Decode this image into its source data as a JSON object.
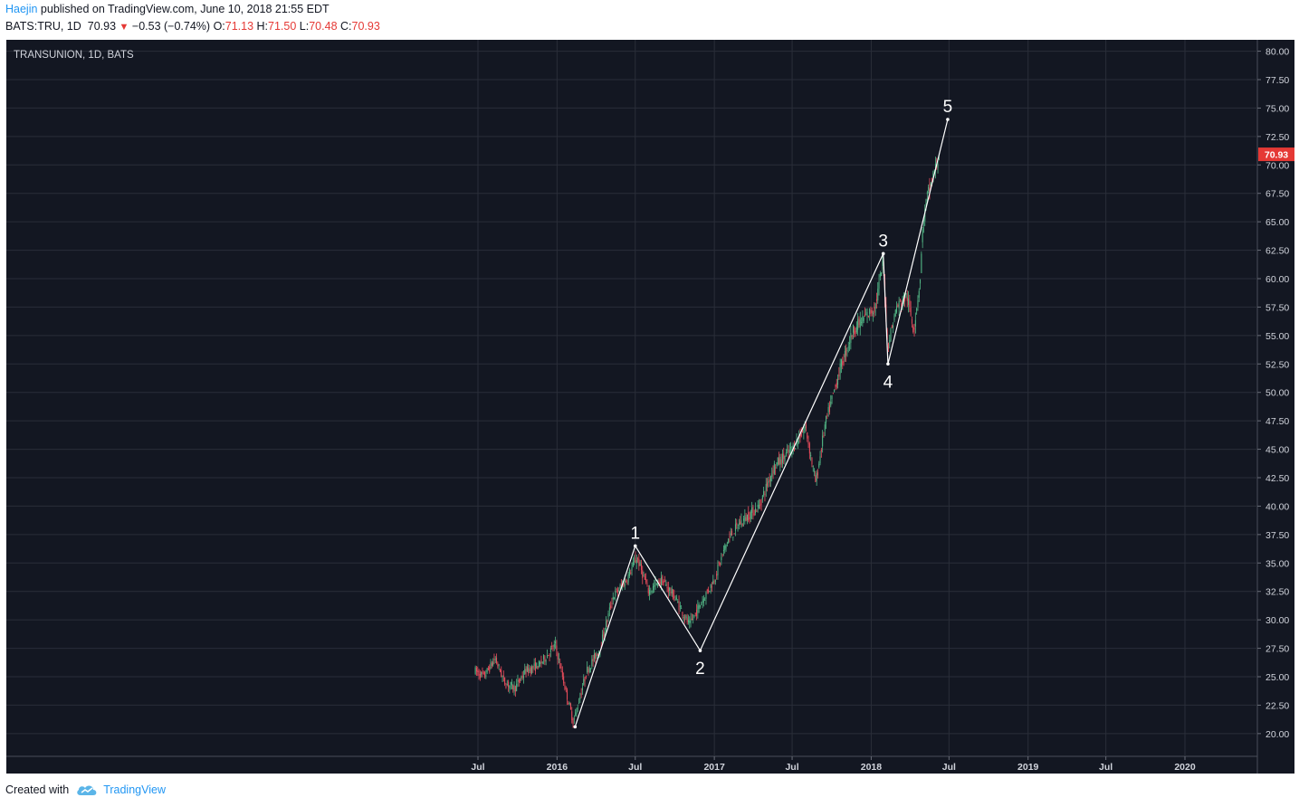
{
  "header": {
    "author": "Haejin",
    "published_text": "published on TradingView.com, June 10, 2018 21:55 EDT",
    "symbol": "BATS:TRU, 1D",
    "last": "70.93",
    "change": "−0.53 (−0.74%)",
    "o_label": "O:",
    "o_value": "71.13",
    "h_label": "H:",
    "h_value": "71.50",
    "l_label": "L:",
    "l_value": "70.48",
    "c_label": "C:",
    "c_value": "70.93"
  },
  "footer": {
    "created_with": "Created with",
    "brand": "TradingView",
    "logo_icon": "tradingview-cloud-icon"
  },
  "colors": {
    "background": "#131722",
    "grid": "#2a2e39",
    "up": "#53b987",
    "down": "#eb4d5c",
    "wave_line": "#ffffff",
    "price_tag": "#e53935"
  },
  "chart_data": {
    "type": "candlestick",
    "title": "TRANSUNION, 1D, BATS",
    "ylim": [
      18,
      81
    ],
    "y_ticks": [
      "20.00",
      "22.50",
      "25.00",
      "27.50",
      "30.00",
      "32.50",
      "35.00",
      "37.50",
      "40.00",
      "42.50",
      "45.00",
      "47.50",
      "50.00",
      "52.50",
      "55.00",
      "57.50",
      "60.00",
      "62.50",
      "65.00",
      "67.50",
      "70.00",
      "72.50",
      "75.00",
      "77.50",
      "80.00"
    ],
    "x_ticks": [
      "Jul",
      "2016",
      "Jul",
      "2017",
      "Jul",
      "2018",
      "Jul",
      "2019",
      "Jul",
      "2020"
    ],
    "last_price_tag": "70.93",
    "price_path": [
      {
        "t": "2015-06-25",
        "p": 25.5
      },
      {
        "t": "2015-07-15",
        "p": 25.0
      },
      {
        "t": "2015-08-10",
        "p": 26.6
      },
      {
        "t": "2015-09-01",
        "p": 24.5
      },
      {
        "t": "2015-09-25",
        "p": 24.0
      },
      {
        "t": "2015-10-20",
        "p": 25.5
      },
      {
        "t": "2015-11-20",
        "p": 26.0
      },
      {
        "t": "2015-12-28",
        "p": 27.8
      },
      {
        "t": "2016-01-20",
        "p": 24.0
      },
      {
        "t": "2016-02-08",
        "p": 21.0
      },
      {
        "t": "2016-03-10",
        "p": 25.5
      },
      {
        "t": "2016-04-10",
        "p": 27.5
      },
      {
        "t": "2016-05-10",
        "p": 32.0
      },
      {
        "t": "2016-06-10",
        "p": 33.5
      },
      {
        "t": "2016-07-05",
        "p": 35.5
      },
      {
        "t": "2016-08-01",
        "p": 32.5
      },
      {
        "t": "2016-09-01",
        "p": 33.5
      },
      {
        "t": "2016-10-01",
        "p": 32.0
      },
      {
        "t": "2016-11-04",
        "p": 29.5
      },
      {
        "t": "2016-12-01",
        "p": 31.5
      },
      {
        "t": "2016-12-31",
        "p": 33.5
      },
      {
        "t": "2017-02-01",
        "p": 37.0
      },
      {
        "t": "2017-03-01",
        "p": 38.5
      },
      {
        "t": "2017-04-15",
        "p": 40.0
      },
      {
        "t": "2017-05-20",
        "p": 43.5
      },
      {
        "t": "2017-07-01",
        "p": 45.0
      },
      {
        "t": "2017-08-01",
        "p": 47.0
      },
      {
        "t": "2017-08-25",
        "p": 42.0
      },
      {
        "t": "2017-09-15",
        "p": 47.0
      },
      {
        "t": "2017-10-20",
        "p": 52.0
      },
      {
        "t": "2017-11-20",
        "p": 55.5
      },
      {
        "t": "2018-01-10",
        "p": 57.5
      },
      {
        "t": "2018-01-29",
        "p": 61.5
      },
      {
        "t": "2018-02-08",
        "p": 54.0
      },
      {
        "t": "2018-03-01",
        "p": 57.5
      },
      {
        "t": "2018-03-25",
        "p": 58.5
      },
      {
        "t": "2018-04-10",
        "p": 55.5
      },
      {
        "t": "2018-04-25",
        "p": 60.0
      },
      {
        "t": "2018-05-01",
        "p": 64.5
      },
      {
        "t": "2018-05-10",
        "p": 67.0
      },
      {
        "t": "2018-05-25",
        "p": 69.0
      },
      {
        "t": "2018-06-10",
        "p": 71.0
      }
    ],
    "waves": [
      {
        "label": "",
        "t": "2016-02-12",
        "p": 20.6,
        "label_pos": "below"
      },
      {
        "label": "1",
        "t": "2016-07-01",
        "p": 36.5,
        "label_pos": "above"
      },
      {
        "label": "2",
        "t": "2016-11-29",
        "p": 27.3,
        "label_pos": "below"
      },
      {
        "label": "3",
        "t": "2018-01-29",
        "p": 62.2,
        "label_pos": "above"
      },
      {
        "label": "4",
        "t": "2018-02-09",
        "p": 52.5,
        "label_pos": "below"
      },
      {
        "label": "5",
        "t": "2018-06-28",
        "p": 74.0,
        "label_pos": "above"
      }
    ]
  }
}
